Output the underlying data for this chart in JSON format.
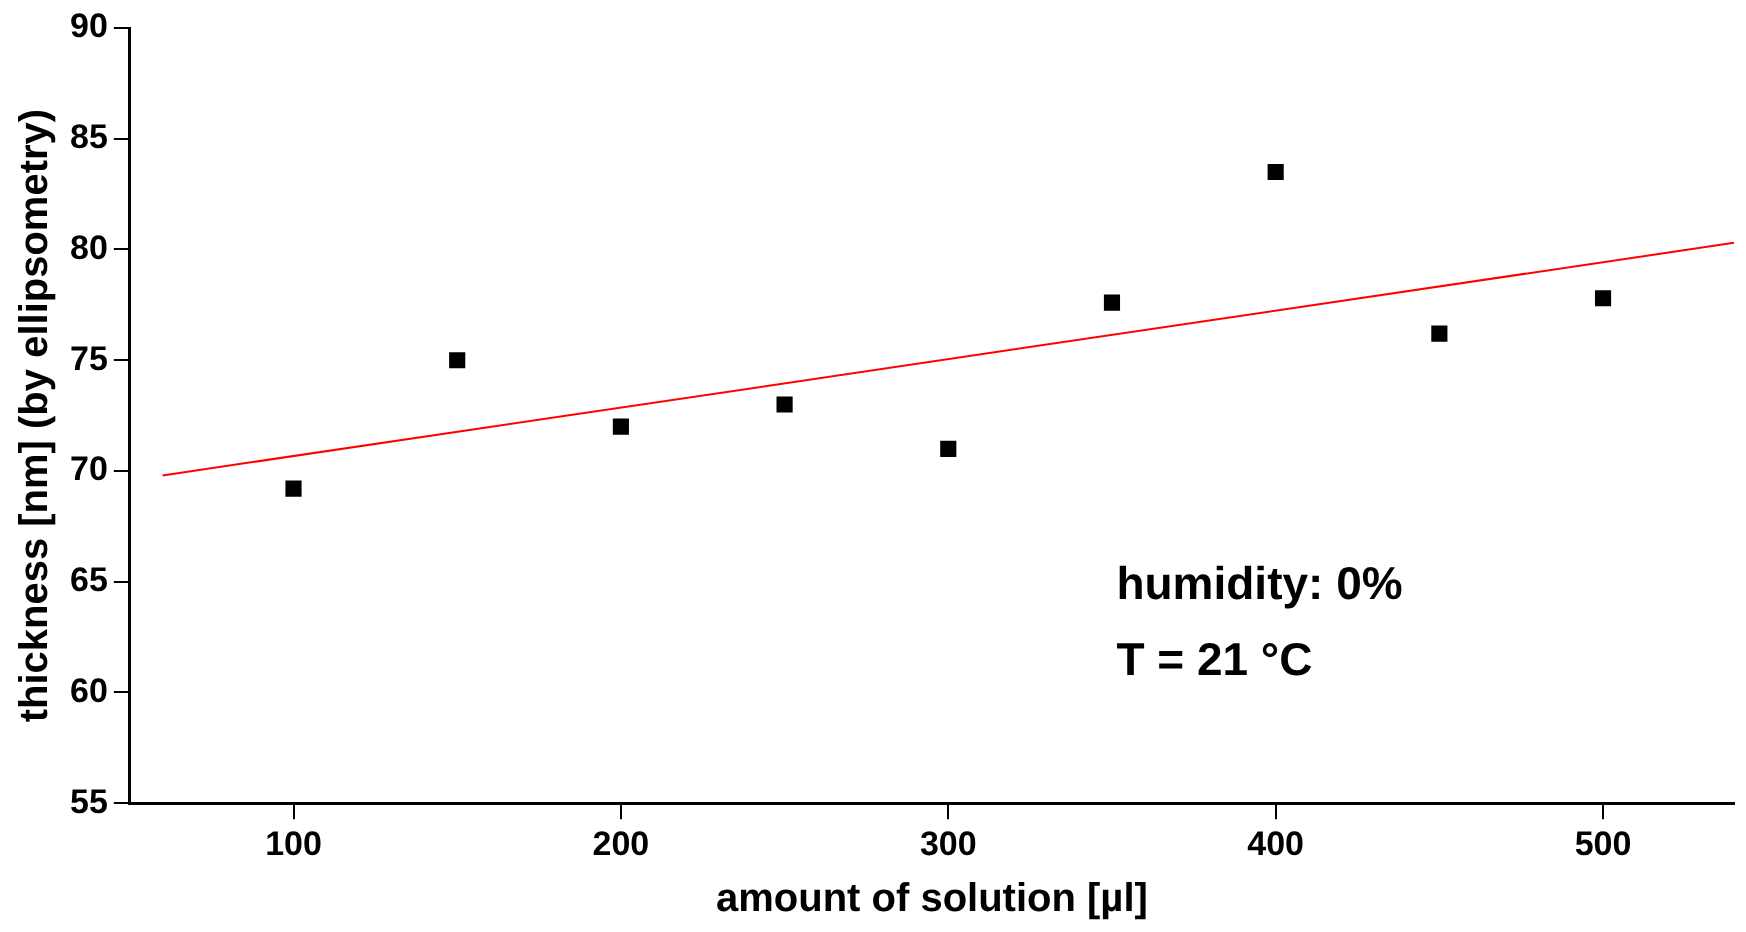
{
  "chart_data": {
    "type": "scatter",
    "xlabel": "amount of solution [µl]",
    "ylabel": "thickness [nm] (by ellipsometry)",
    "xlim": [
      50,
      540
    ],
    "xticks": [
      100,
      200,
      300,
      400,
      500
    ],
    "ylim": [
      55,
      90
    ],
    "yticks": [
      55,
      60,
      65,
      70,
      75,
      80,
      85,
      90
    ],
    "grid": false,
    "legend": false,
    "marker": "square",
    "annotations": [
      "humidity: 0%",
      "T = 21 °C"
    ],
    "series": [
      {
        "color": "#000000",
        "x": [
          100,
          150,
          200,
          250,
          300,
          350,
          400,
          450,
          500
        ],
        "values": [
          69.2,
          75,
          72,
          73,
          71,
          77.6,
          83.5,
          76.2,
          77.8
        ]
      },
      {
        "type": "line",
        "color": "#ff0000",
        "x": [
          60,
          540
        ],
        "values": [
          69.8,
          80.3
        ],
        "marker": "none"
      }
    ]
  }
}
